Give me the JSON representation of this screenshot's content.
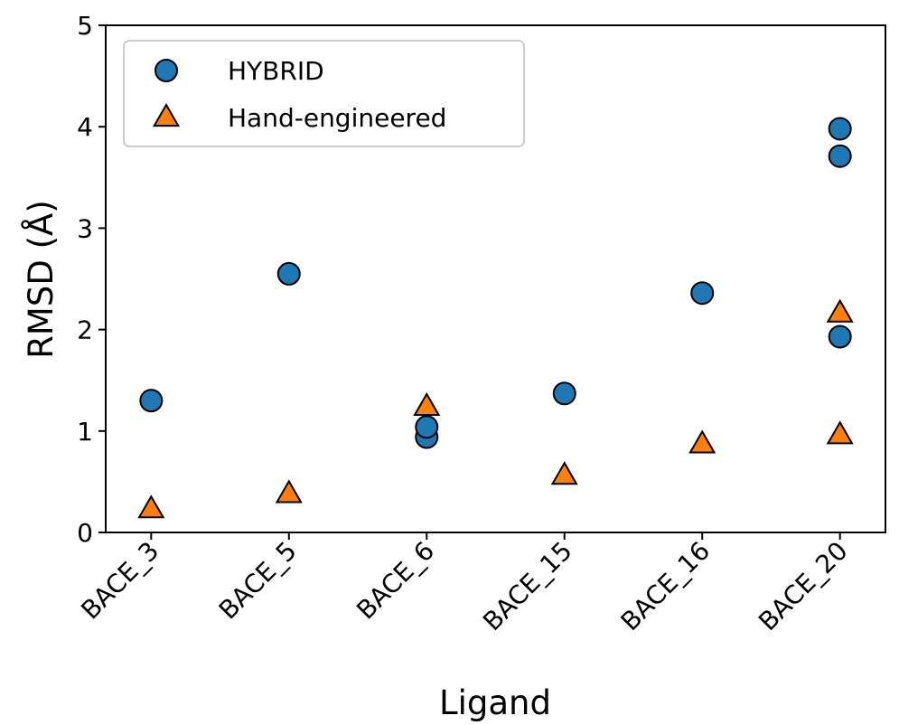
{
  "chart_data": {
    "type": "scatter",
    "xlabel": "Ligand",
    "ylabel": "RMSD (Å)",
    "categories": [
      "BACE_3",
      "BACE_5",
      "BACE_6",
      "BACE_15",
      "BACE_16",
      "BACE_20"
    ],
    "series": [
      {
        "name": "HYBRID",
        "color": "#1f77b4",
        "marker": "circle",
        "x": [
          "BACE_3",
          "BACE_5",
          "BACE_6",
          "BACE_6",
          "BACE_15",
          "BACE_16",
          "BACE_20",
          "BACE_20",
          "BACE_20"
        ],
        "values": [
          1.3,
          2.55,
          0.94,
          1.04,
          1.37,
          2.36,
          3.98,
          3.71,
          1.93
        ]
      },
      {
        "name": "Hand-engineered",
        "color": "#ff7f0e",
        "marker": "triangle",
        "x": [
          "BACE_3",
          "BACE_5",
          "BACE_6",
          "BACE_15",
          "BACE_16",
          "BACE_20",
          "BACE_20"
        ],
        "values": [
          0.23,
          0.38,
          1.24,
          0.56,
          0.87,
          2.16,
          0.96
        ]
      }
    ],
    "ylim": [
      0,
      5
    ],
    "yticks": [
      0,
      1,
      2,
      3,
      4,
      5
    ],
    "legend": "upper left",
    "grid": false
  }
}
